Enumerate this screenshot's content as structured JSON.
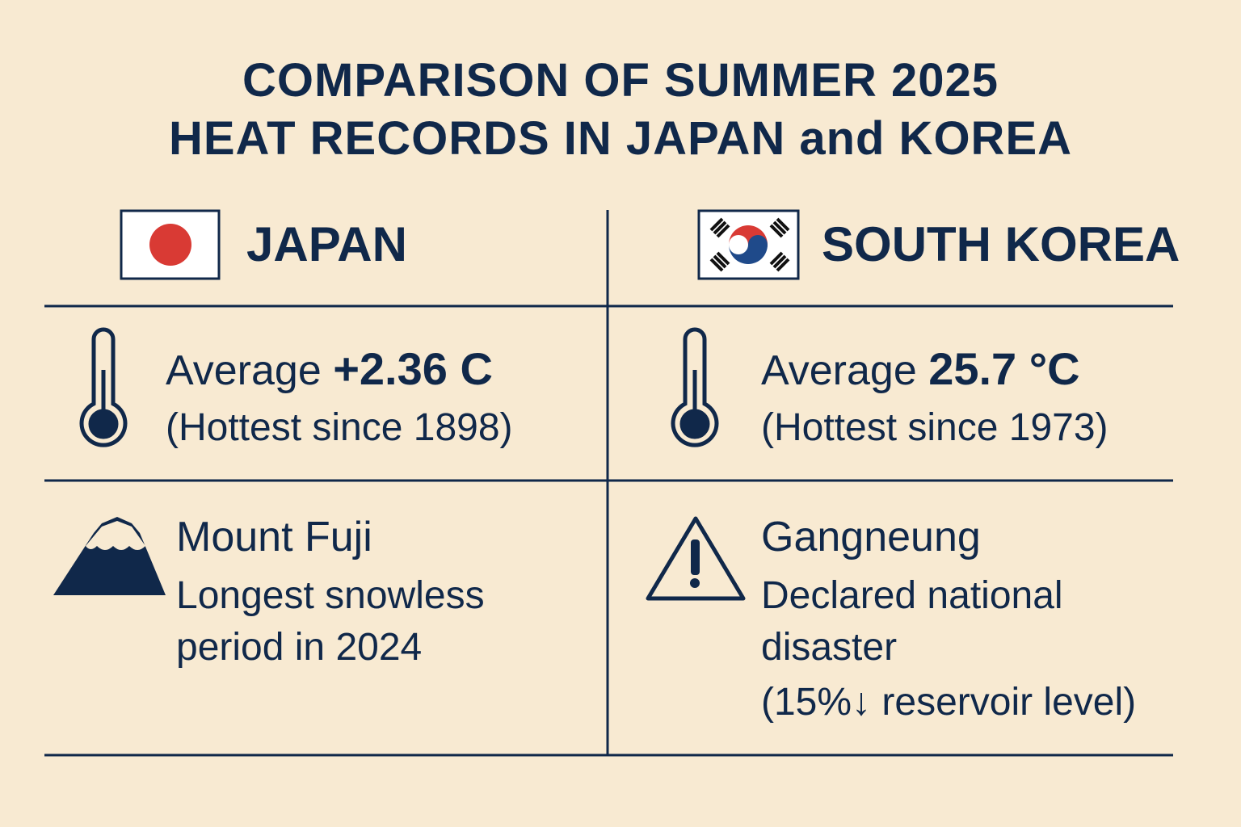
{
  "header": {
    "title_lines": [
      "COMPARISON OF SUMMER 2025",
      "HEAT RECORDS IN JAPAN and KOREA"
    ]
  },
  "columns": [
    {
      "country": "JAPAN",
      "temperature": {
        "label": "Average",
        "value": "+2.36 C",
        "note": "(Hottest since 1898)"
      },
      "event": {
        "title": "Mount Fuji",
        "lines": [
          "Longest snowless period in 2024"
        ]
      }
    },
    {
      "country": "SOUTH KOREA",
      "temperature": {
        "label": "Average",
        "value": "25.7 °C",
        "note": "(Hottest since 1973)"
      },
      "event": {
        "title": "Gangneung",
        "lines": [
          "Declared national disaster",
          "(15%↓ reservoir level)"
        ]
      }
    }
  ]
}
